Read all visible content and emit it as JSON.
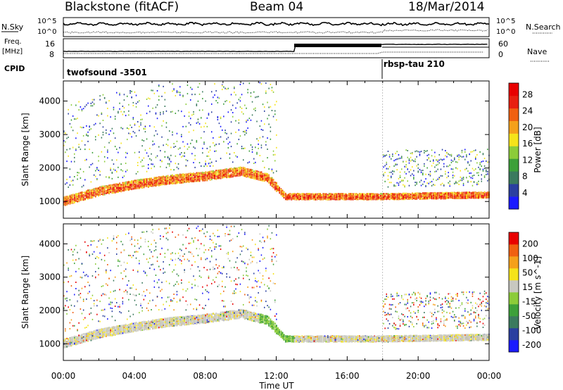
{
  "header": {
    "station": "Blackstone (fitACF)",
    "beam": "Beam 04",
    "date": "18/Mar/2014"
  },
  "panels": {
    "nsky_label": "N.Sky",
    "nsearch_label": "N.Search",
    "nsky_ticks": [
      "10^5",
      "10^0"
    ],
    "freq_label_1": "Freq.",
    "freq_label_2": "[MHz]",
    "freq_ticks": [
      "16",
      "8"
    ],
    "nave_label": "Nave",
    "nave_ticks": [
      "60",
      "0"
    ],
    "cpid_label": "CPID",
    "cpid_segments": [
      {
        "name": "twofsound -3501",
        "start_hour": 0
      },
      {
        "name": "rbsp-tau 210",
        "start_hour": 18
      }
    ]
  },
  "colors": {
    "power_scale": [
      "#1a1aff",
      "#2a3fa0",
      "#3b7a5e",
      "#3da03a",
      "#8ccc3a",
      "#f5e31a",
      "#f5a01a",
      "#f06010",
      "#e82010",
      "#e80000"
    ],
    "velocity_scale": [
      "#1a1aff",
      "#2a3fa0",
      "#3b7a5e",
      "#3da03a",
      "#8ccc3a",
      "#c8c8c0",
      "#f5e31a",
      "#f5a01a",
      "#f06010",
      "#e80000"
    ]
  },
  "chart_data": [
    {
      "type": "heatmap",
      "title": "",
      "xlabel": "Time UT",
      "ylabel": "Slant Range [km]",
      "xlim": [
        0,
        24
      ],
      "ylim": [
        500,
        4600
      ],
      "x_ticks": [
        "00:00",
        "04:00",
        "08:00",
        "12:00",
        "16:00",
        "20:00",
        "00:00"
      ],
      "y_ticks": [
        1000,
        2000,
        3000,
        4000
      ],
      "colorbar": {
        "label": "Power [dB]",
        "ticks": [
          4,
          8,
          12,
          16,
          20,
          24,
          28
        ],
        "range": [
          0,
          30
        ]
      },
      "main_echo_band_km": [
        {
          "hour": 0,
          "range": 1000
        },
        {
          "hour": 2,
          "range": 1300
        },
        {
          "hour": 4,
          "range": 1500
        },
        {
          "hour": 6,
          "range": 1650
        },
        {
          "hour": 8,
          "range": 1750
        },
        {
          "hour": 10,
          "range": 1900
        },
        {
          "hour": 11.5,
          "range": 1700
        },
        {
          "hour": 12.5,
          "range": 1150
        },
        {
          "hour": 16,
          "range": 1150
        },
        {
          "hour": 18,
          "range": 1150
        },
        {
          "hour": 24,
          "range": 1200
        }
      ]
    },
    {
      "type": "heatmap",
      "title": "",
      "xlabel": "Time UT",
      "ylabel": "Slant Range [km]",
      "xlim": [
        0,
        24
      ],
      "ylim": [
        500,
        4600
      ],
      "x_ticks": [
        "00:00",
        "04:00",
        "08:00",
        "12:00",
        "16:00",
        "20:00",
        "00:00"
      ],
      "y_ticks": [
        1000,
        2000,
        3000,
        4000
      ],
      "colorbar": {
        "label": "Velocity [m s^-1]",
        "ticks": [
          200,
          100,
          50,
          15,
          -15,
          -50,
          -100,
          -200
        ],
        "range": [
          -250,
          250
        ]
      }
    }
  ]
}
